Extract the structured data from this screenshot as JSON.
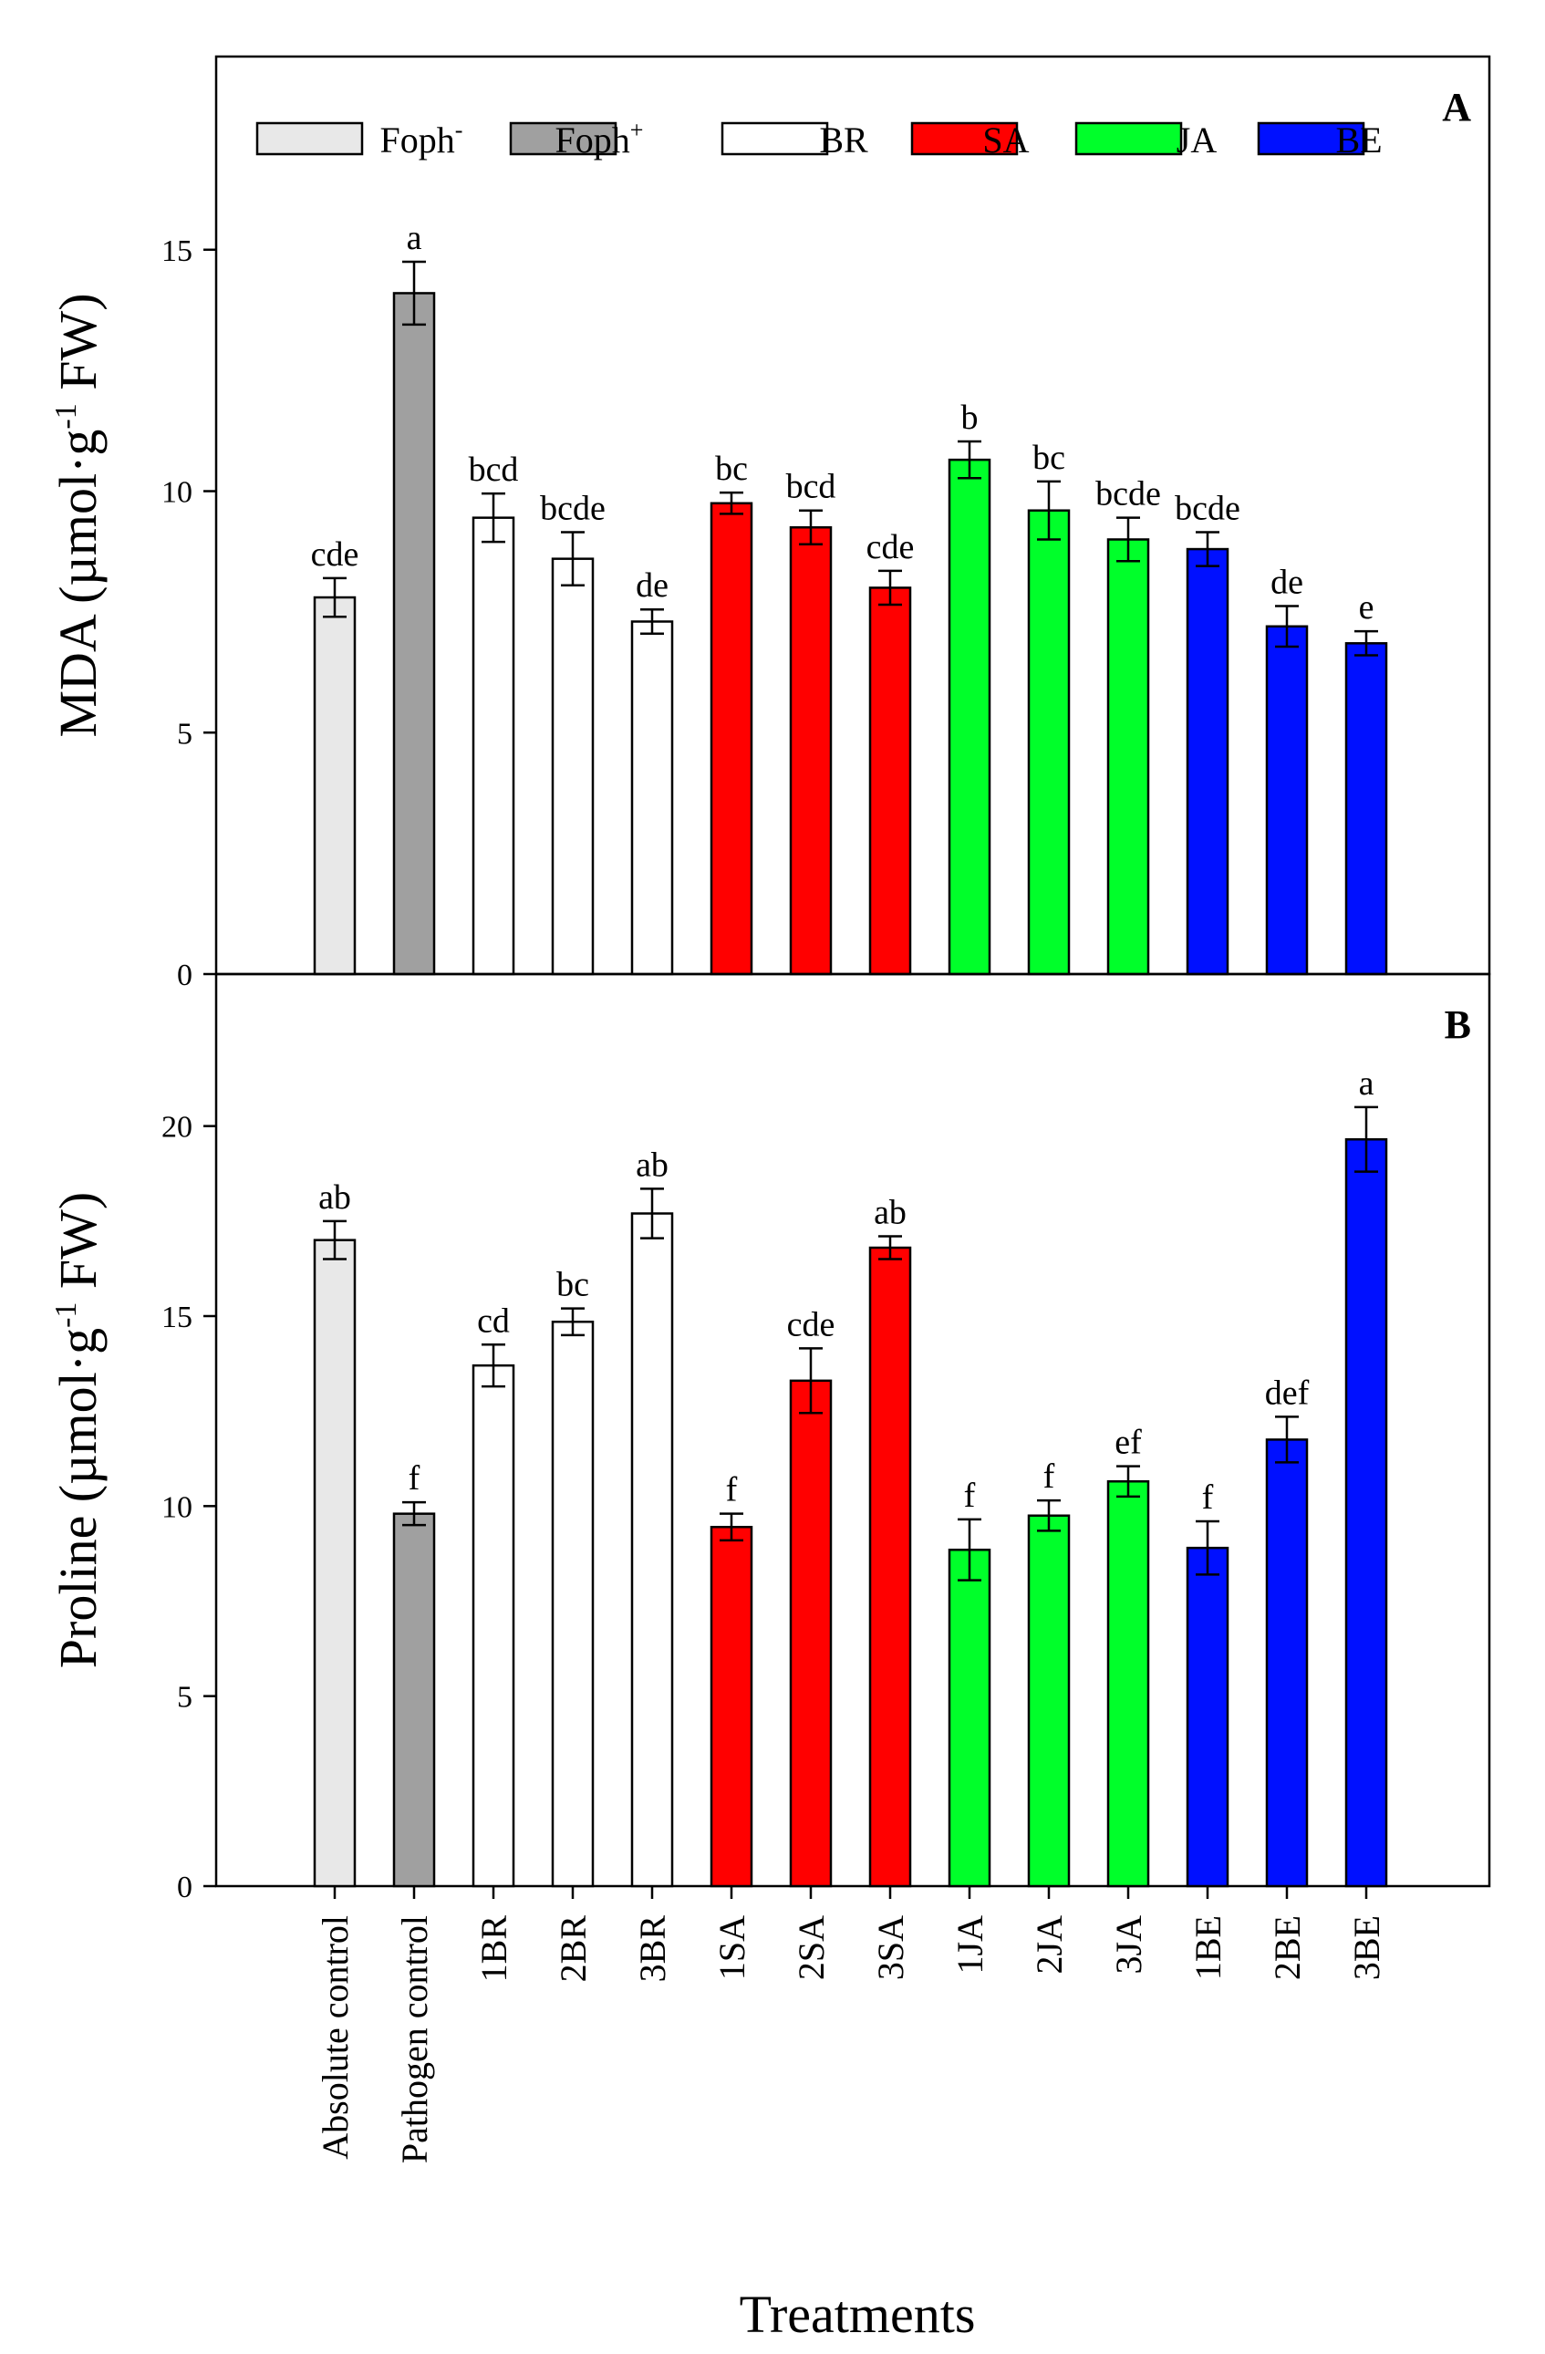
{
  "chart_data": [
    {
      "panel": "A",
      "type": "bar",
      "ylabel": "MDA (µmol·g-1 FW)",
      "ylabel_parts": {
        "pre": "MDA (µmol·g",
        "sup": "-1",
        "post": " FW)"
      },
      "ylim": [
        0,
        19
      ],
      "yticks": [
        0,
        5,
        10,
        15
      ],
      "categories": [
        "Absolute control",
        "Pathogen control",
        "1BR",
        "2BR",
        "3BR",
        "1SA",
        "2SA",
        "3SA",
        "1JA",
        "2JA",
        "3JA",
        "1BE",
        "2BE",
        "3BE"
      ],
      "values": [
        7.8,
        14.1,
        9.45,
        8.6,
        7.3,
        9.75,
        9.25,
        8.0,
        10.65,
        9.6,
        9.0,
        8.8,
        7.2,
        6.85
      ],
      "errors": [
        0.4,
        0.65,
        0.5,
        0.55,
        0.25,
        0.22,
        0.35,
        0.35,
        0.38,
        0.6,
        0.45,
        0.35,
        0.42,
        0.25
      ],
      "letters": [
        "cde",
        "a",
        "bcd",
        "bcde",
        "de",
        "bc",
        "bcd",
        "cde",
        "b",
        "bc",
        "bcde",
        "bcde",
        "de",
        "e"
      ],
      "group_colors": [
        "#e8e8e8",
        "#a0a0a0",
        "#ffffff",
        "#ffffff",
        "#ffffff",
        "#ff0000",
        "#ff0000",
        "#ff0000",
        "#00ff2a",
        "#00ff2a",
        "#00ff2a",
        "#0010ff",
        "#0010ff",
        "#0010ff"
      ],
      "legend": [
        {
          "name": "Foph",
          "sup": "-",
          "color": "#e8e8e8"
        },
        {
          "name": "Foph",
          "sup": "+",
          "color": "#a0a0a0"
        },
        {
          "name": "BR",
          "sup": "",
          "color": "#ffffff"
        },
        {
          "name": "SA",
          "sup": "",
          "color": "#ff0000"
        },
        {
          "name": "JA",
          "sup": "",
          "color": "#00ff2a"
        },
        {
          "name": "BE",
          "sup": "",
          "color": "#0010ff"
        }
      ]
    },
    {
      "panel": "B",
      "type": "bar",
      "ylabel": "Proline (µmol·g-1 FW)",
      "ylabel_parts": {
        "pre": "Proline (µmol·g",
        "sup": "-1",
        "post": " FW)"
      },
      "ylim": [
        0,
        24
      ],
      "yticks": [
        0,
        5,
        10,
        15,
        20
      ],
      "categories": [
        "Absolute control",
        "Pathogen control",
        "1BR",
        "2BR",
        "3BR",
        "1SA",
        "2SA",
        "3SA",
        "1JA",
        "2JA",
        "3JA",
        "1BE",
        "2BE",
        "3BE"
      ],
      "values": [
        17.0,
        9.8,
        13.7,
        14.85,
        17.7,
        9.45,
        13.3,
        16.8,
        8.85,
        9.75,
        10.65,
        8.9,
        11.75,
        19.65
      ],
      "errors": [
        0.5,
        0.3,
        0.55,
        0.35,
        0.65,
        0.35,
        0.85,
        0.3,
        0.8,
        0.4,
        0.4,
        0.7,
        0.6,
        0.85
      ],
      "letters": [
        "ab",
        "f",
        "cd",
        "bc",
        "ab",
        "f",
        "cde",
        "ab",
        "f",
        "f",
        "ef",
        "f",
        "def",
        "a"
      ],
      "group_colors": [
        "#e8e8e8",
        "#a0a0a0",
        "#ffffff",
        "#ffffff",
        "#ffffff",
        "#ff0000",
        "#ff0000",
        "#ff0000",
        "#00ff2a",
        "#00ff2a",
        "#00ff2a",
        "#0010ff",
        "#0010ff",
        "#0010ff"
      ]
    }
  ],
  "figure": {
    "xlabel": "Treatments"
  }
}
